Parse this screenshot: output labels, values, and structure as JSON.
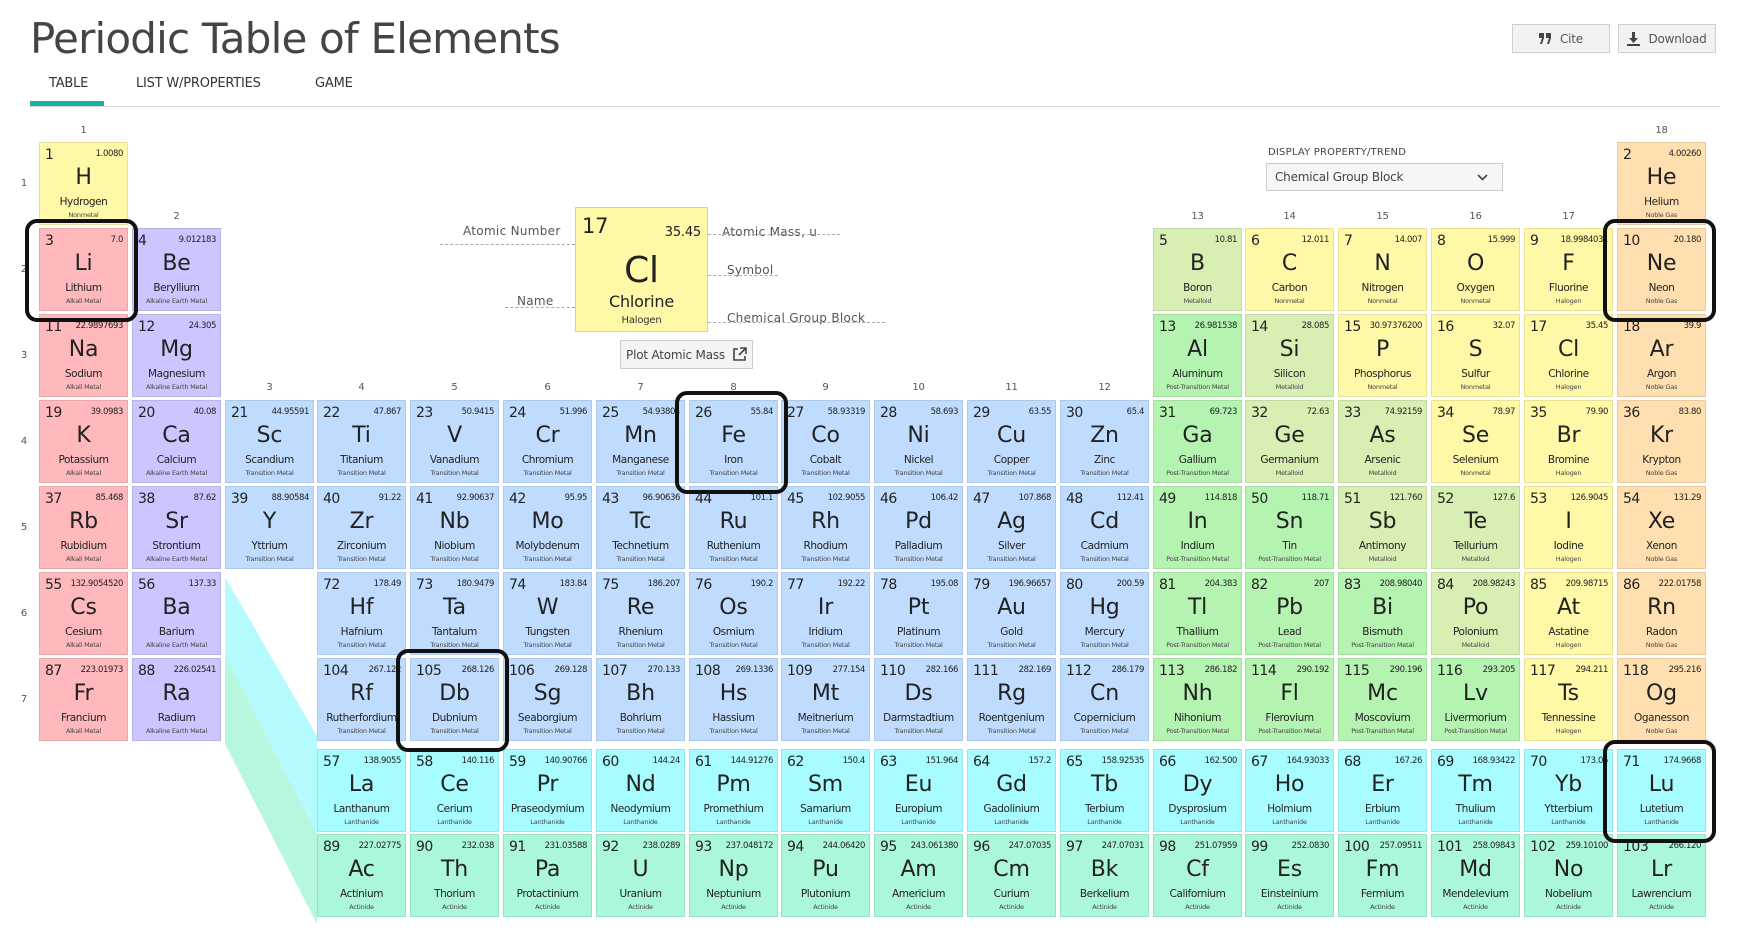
{
  "page": {
    "title": "Periodic Table of Elements",
    "cite_label": "Cite",
    "download_label": "Download",
    "tabs": [
      {
        "label": "TABLE",
        "active": true
      },
      {
        "label": "LIST W/PROPERTIES",
        "active": false
      },
      {
        "label": "GAME",
        "active": false
      }
    ]
  },
  "display_property": {
    "label": "DISPLAY PROPERTY/TREND",
    "selected": "Chemical Group Block"
  },
  "legend": {
    "number": "17",
    "mass": "35.45",
    "symbol": "Cl",
    "name": "Chlorine",
    "group": "Halogen",
    "labels": {
      "atomic_number": "Atomic Number",
      "atomic_mass": "Atomic Mass, u",
      "symbol": "Symbol",
      "name": "Name",
      "group_block": "Chemical Group Block"
    },
    "plot_button": "Plot Atomic Mass"
  },
  "group_numbers": [
    "1",
    "2",
    "3",
    "4",
    "5",
    "6",
    "7",
    "8",
    "9",
    "10",
    "11",
    "12",
    "13",
    "14",
    "15",
    "16",
    "17",
    "18"
  ],
  "period_numbers": [
    "1",
    "2",
    "3",
    "4",
    "5",
    "6",
    "7"
  ],
  "colors": {
    "Nonmetal": "#fff8a6",
    "Noble Gas": "#ffdfb0",
    "Alkali Metal": "#ffb8bc",
    "Alkaline Earth Metal": "#cbc6ff",
    "Transition Metal": "#bfdcff",
    "Post-Transition Metal": "#b4f3b0",
    "Metalloid": "#d8efb4",
    "Halogen": "#fff8a6",
    "Lanthanide": "#a6fcff",
    "Actinide": "#aaf7da",
    "highlight_border": "#111111",
    "tab_accent": "#18b2a4"
  },
  "highlighted_elements": [
    "Li",
    "Fe",
    "Db",
    "Ne",
    "Lu"
  ],
  "elements": [
    {
      "n": "1",
      "s": "H",
      "name": "Hydrogen",
      "m": "1.0080",
      "g": "Nonmetal",
      "col": 1,
      "row": 1
    },
    {
      "n": "2",
      "s": "He",
      "name": "Helium",
      "m": "4.00260",
      "g": "Noble Gas",
      "col": 18,
      "row": 1
    },
    {
      "n": "3",
      "s": "Li",
      "name": "Lithium",
      "m": "7.0",
      "g": "Alkali Metal",
      "col": 1,
      "row": 2
    },
    {
      "n": "4",
      "s": "Be",
      "name": "Beryllium",
      "m": "9.012183",
      "g": "Alkaline Earth Metal",
      "col": 2,
      "row": 2
    },
    {
      "n": "5",
      "s": "B",
      "name": "Boron",
      "m": "10.81",
      "g": "Metalloid",
      "col": 13,
      "row": 2
    },
    {
      "n": "6",
      "s": "C",
      "name": "Carbon",
      "m": "12.011",
      "g": "Nonmetal",
      "col": 14,
      "row": 2
    },
    {
      "n": "7",
      "s": "N",
      "name": "Nitrogen",
      "m": "14.007",
      "g": "Nonmetal",
      "col": 15,
      "row": 2
    },
    {
      "n": "8",
      "s": "O",
      "name": "Oxygen",
      "m": "15.999",
      "g": "Nonmetal",
      "col": 16,
      "row": 2
    },
    {
      "n": "9",
      "s": "F",
      "name": "Fluorine",
      "m": "18.9984031",
      "g": "Halogen",
      "col": 17,
      "row": 2
    },
    {
      "n": "10",
      "s": "Ne",
      "name": "Neon",
      "m": "20.180",
      "g": "Noble Gas",
      "col": 18,
      "row": 2
    },
    {
      "n": "11",
      "s": "Na",
      "name": "Sodium",
      "m": "22.9897693",
      "g": "Alkali Metal",
      "col": 1,
      "row": 3
    },
    {
      "n": "12",
      "s": "Mg",
      "name": "Magnesium",
      "m": "24.305",
      "g": "Alkaline Earth Metal",
      "col": 2,
      "row": 3
    },
    {
      "n": "13",
      "s": "Al",
      "name": "Aluminum",
      "m": "26.981538",
      "g": "Post-Transition Metal",
      "col": 13,
      "row": 3
    },
    {
      "n": "14",
      "s": "Si",
      "name": "Silicon",
      "m": "28.085",
      "g": "Metalloid",
      "col": 14,
      "row": 3
    },
    {
      "n": "15",
      "s": "P",
      "name": "Phosphorus",
      "m": "30.97376200",
      "g": "Nonmetal",
      "col": 15,
      "row": 3
    },
    {
      "n": "16",
      "s": "S",
      "name": "Sulfur",
      "m": "32.07",
      "g": "Nonmetal",
      "col": 16,
      "row": 3
    },
    {
      "n": "17",
      "s": "Cl",
      "name": "Chlorine",
      "m": "35.45",
      "g": "Halogen",
      "col": 17,
      "row": 3
    },
    {
      "n": "18",
      "s": "Ar",
      "name": "Argon",
      "m": "39.9",
      "g": "Noble Gas",
      "col": 18,
      "row": 3
    },
    {
      "n": "19",
      "s": "K",
      "name": "Potassium",
      "m": "39.0983",
      "g": "Alkali Metal",
      "col": 1,
      "row": 4
    },
    {
      "n": "20",
      "s": "Ca",
      "name": "Calcium",
      "m": "40.08",
      "g": "Alkaline Earth Metal",
      "col": 2,
      "row": 4
    },
    {
      "n": "21",
      "s": "Sc",
      "name": "Scandium",
      "m": "44.95591",
      "g": "Transition Metal",
      "col": 3,
      "row": 4
    },
    {
      "n": "22",
      "s": "Ti",
      "name": "Titanium",
      "m": "47.867",
      "g": "Transition Metal",
      "col": 4,
      "row": 4
    },
    {
      "n": "23",
      "s": "V",
      "name": "Vanadium",
      "m": "50.9415",
      "g": "Transition Metal",
      "col": 5,
      "row": 4
    },
    {
      "n": "24",
      "s": "Cr",
      "name": "Chromium",
      "m": "51.996",
      "g": "Transition Metal",
      "col": 6,
      "row": 4
    },
    {
      "n": "25",
      "s": "Mn",
      "name": "Manganese",
      "m": "54.93804",
      "g": "Transition Metal",
      "col": 7,
      "row": 4
    },
    {
      "n": "26",
      "s": "Fe",
      "name": "Iron",
      "m": "55.84",
      "g": "Transition Metal",
      "col": 8,
      "row": 4
    },
    {
      "n": "27",
      "s": "Co",
      "name": "Cobalt",
      "m": "58.93319",
      "g": "Transition Metal",
      "col": 9,
      "row": 4
    },
    {
      "n": "28",
      "s": "Ni",
      "name": "Nickel",
      "m": "58.693",
      "g": "Transition Metal",
      "col": 10,
      "row": 4
    },
    {
      "n": "29",
      "s": "Cu",
      "name": "Copper",
      "m": "63.55",
      "g": "Transition Metal",
      "col": 11,
      "row": 4
    },
    {
      "n": "30",
      "s": "Zn",
      "name": "Zinc",
      "m": "65.4",
      "g": "Transition Metal",
      "col": 12,
      "row": 4
    },
    {
      "n": "31",
      "s": "Ga",
      "name": "Gallium",
      "m": "69.723",
      "g": "Post-Transition Metal",
      "col": 13,
      "row": 4
    },
    {
      "n": "32",
      "s": "Ge",
      "name": "Germanium",
      "m": "72.63",
      "g": "Metalloid",
      "col": 14,
      "row": 4
    },
    {
      "n": "33",
      "s": "As",
      "name": "Arsenic",
      "m": "74.92159",
      "g": "Metalloid",
      "col": 15,
      "row": 4
    },
    {
      "n": "34",
      "s": "Se",
      "name": "Selenium",
      "m": "78.97",
      "g": "Nonmetal",
      "col": 16,
      "row": 4
    },
    {
      "n": "35",
      "s": "Br",
      "name": "Bromine",
      "m": "79.90",
      "g": "Halogen",
      "col": 17,
      "row": 4
    },
    {
      "n": "36",
      "s": "Kr",
      "name": "Krypton",
      "m": "83.80",
      "g": "Noble Gas",
      "col": 18,
      "row": 4
    },
    {
      "n": "37",
      "s": "Rb",
      "name": "Rubidium",
      "m": "85.468",
      "g": "Alkali Metal",
      "col": 1,
      "row": 5
    },
    {
      "n": "38",
      "s": "Sr",
      "name": "Strontium",
      "m": "87.62",
      "g": "Alkaline Earth Metal",
      "col": 2,
      "row": 5
    },
    {
      "n": "39",
      "s": "Y",
      "name": "Yttrium",
      "m": "88.90584",
      "g": "Transition Metal",
      "col": 3,
      "row": 5
    },
    {
      "n": "40",
      "s": "Zr",
      "name": "Zirconium",
      "m": "91.22",
      "g": "Transition Metal",
      "col": 4,
      "row": 5
    },
    {
      "n": "41",
      "s": "Nb",
      "name": "Niobium",
      "m": "92.90637",
      "g": "Transition Metal",
      "col": 5,
      "row": 5
    },
    {
      "n": "42",
      "s": "Mo",
      "name": "Molybdenum",
      "m": "95.95",
      "g": "Transition Metal",
      "col": 6,
      "row": 5
    },
    {
      "n": "43",
      "s": "Tc",
      "name": "Technetium",
      "m": "96.90636",
      "g": "Transition Metal",
      "col": 7,
      "row": 5
    },
    {
      "n": "44",
      "s": "Ru",
      "name": "Ruthenium",
      "m": "101.1",
      "g": "Transition Metal",
      "col": 8,
      "row": 5
    },
    {
      "n": "45",
      "s": "Rh",
      "name": "Rhodium",
      "m": "102.9055",
      "g": "Transition Metal",
      "col": 9,
      "row": 5
    },
    {
      "n": "46",
      "s": "Pd",
      "name": "Palladium",
      "m": "106.42",
      "g": "Transition Metal",
      "col": 10,
      "row": 5
    },
    {
      "n": "47",
      "s": "Ag",
      "name": "Silver",
      "m": "107.868",
      "g": "Transition Metal",
      "col": 11,
      "row": 5
    },
    {
      "n": "48",
      "s": "Cd",
      "name": "Cadmium",
      "m": "112.41",
      "g": "Transition Metal",
      "col": 12,
      "row": 5
    },
    {
      "n": "49",
      "s": "In",
      "name": "Indium",
      "m": "114.818",
      "g": "Post-Transition Metal",
      "col": 13,
      "row": 5
    },
    {
      "n": "50",
      "s": "Sn",
      "name": "Tin",
      "m": "118.71",
      "g": "Post-Transition Metal",
      "col": 14,
      "row": 5
    },
    {
      "n": "51",
      "s": "Sb",
      "name": "Antimony",
      "m": "121.760",
      "g": "Metalloid",
      "col": 15,
      "row": 5
    },
    {
      "n": "52",
      "s": "Te",
      "name": "Tellurium",
      "m": "127.6",
      "g": "Metalloid",
      "col": 16,
      "row": 5
    },
    {
      "n": "53",
      "s": "I",
      "name": "Iodine",
      "m": "126.9045",
      "g": "Halogen",
      "col": 17,
      "row": 5
    },
    {
      "n": "54",
      "s": "Xe",
      "name": "Xenon",
      "m": "131.29",
      "g": "Noble Gas",
      "col": 18,
      "row": 5
    },
    {
      "n": "55",
      "s": "Cs",
      "name": "Cesium",
      "m": "132.9054520",
      "g": "Alkali Metal",
      "col": 1,
      "row": 6
    },
    {
      "n": "56",
      "s": "Ba",
      "name": "Barium",
      "m": "137.33",
      "g": "Alkaline Earth Metal",
      "col": 2,
      "row": 6
    },
    {
      "n": "72",
      "s": "Hf",
      "name": "Hafnium",
      "m": "178.49",
      "g": "Transition Metal",
      "col": 4,
      "row": 6
    },
    {
      "n": "73",
      "s": "Ta",
      "name": "Tantalum",
      "m": "180.9479",
      "g": "Transition Metal",
      "col": 5,
      "row": 6
    },
    {
      "n": "74",
      "s": "W",
      "name": "Tungsten",
      "m": "183.84",
      "g": "Transition Metal",
      "col": 6,
      "row": 6
    },
    {
      "n": "75",
      "s": "Re",
      "name": "Rhenium",
      "m": "186.207",
      "g": "Transition Metal",
      "col": 7,
      "row": 6
    },
    {
      "n": "76",
      "s": "Os",
      "name": "Osmium",
      "m": "190.2",
      "g": "Transition Metal",
      "col": 8,
      "row": 6
    },
    {
      "n": "77",
      "s": "Ir",
      "name": "Iridium",
      "m": "192.22",
      "g": "Transition Metal",
      "col": 9,
      "row": 6
    },
    {
      "n": "78",
      "s": "Pt",
      "name": "Platinum",
      "m": "195.08",
      "g": "Transition Metal",
      "col": 10,
      "row": 6
    },
    {
      "n": "79",
      "s": "Au",
      "name": "Gold",
      "m": "196.96657",
      "g": "Transition Metal",
      "col": 11,
      "row": 6
    },
    {
      "n": "80",
      "s": "Hg",
      "name": "Mercury",
      "m": "200.59",
      "g": "Transition Metal",
      "col": 12,
      "row": 6
    },
    {
      "n": "81",
      "s": "Tl",
      "name": "Thallium",
      "m": "204.383",
      "g": "Post-Transition Metal",
      "col": 13,
      "row": 6
    },
    {
      "n": "82",
      "s": "Pb",
      "name": "Lead",
      "m": "207",
      "g": "Post-Transition Metal",
      "col": 14,
      "row": 6
    },
    {
      "n": "83",
      "s": "Bi",
      "name": "Bismuth",
      "m": "208.98040",
      "g": "Post-Transition Metal",
      "col": 15,
      "row": 6
    },
    {
      "n": "84",
      "s": "Po",
      "name": "Polonium",
      "m": "208.98243",
      "g": "Metalloid",
      "col": 16,
      "row": 6
    },
    {
      "n": "85",
      "s": "At",
      "name": "Astatine",
      "m": "209.98715",
      "g": "Halogen",
      "col": 17,
      "row": 6
    },
    {
      "n": "86",
      "s": "Rn",
      "name": "Radon",
      "m": "222.01758",
      "g": "Noble Gas",
      "col": 18,
      "row": 6
    },
    {
      "n": "87",
      "s": "Fr",
      "name": "Francium",
      "m": "223.01973",
      "g": "Alkali Metal",
      "col": 1,
      "row": 7
    },
    {
      "n": "88",
      "s": "Ra",
      "name": "Radium",
      "m": "226.02541",
      "g": "Alkaline Earth Metal",
      "col": 2,
      "row": 7
    },
    {
      "n": "104",
      "s": "Rf",
      "name": "Rutherfordium",
      "m": "267.122",
      "g": "Transition Metal",
      "col": 4,
      "row": 7
    },
    {
      "n": "105",
      "s": "Db",
      "name": "Dubnium",
      "m": "268.126",
      "g": "Transition Metal",
      "col": 5,
      "row": 7
    },
    {
      "n": "106",
      "s": "Sg",
      "name": "Seaborgium",
      "m": "269.128",
      "g": "Transition Metal",
      "col": 6,
      "row": 7
    },
    {
      "n": "107",
      "s": "Bh",
      "name": "Bohrium",
      "m": "270.133",
      "g": "Transition Metal",
      "col": 7,
      "row": 7
    },
    {
      "n": "108",
      "s": "Hs",
      "name": "Hassium",
      "m": "269.1336",
      "g": "Transition Metal",
      "col": 8,
      "row": 7
    },
    {
      "n": "109",
      "s": "Mt",
      "name": "Meitnerium",
      "m": "277.154",
      "g": "Transition Metal",
      "col": 9,
      "row": 7
    },
    {
      "n": "110",
      "s": "Ds",
      "name": "Darmstadtium",
      "m": "282.166",
      "g": "Transition Metal",
      "col": 10,
      "row": 7
    },
    {
      "n": "111",
      "s": "Rg",
      "name": "Roentgenium",
      "m": "282.169",
      "g": "Transition Metal",
      "col": 11,
      "row": 7
    },
    {
      "n": "112",
      "s": "Cn",
      "name": "Copernicium",
      "m": "286.179",
      "g": "Transition Metal",
      "col": 12,
      "row": 7
    },
    {
      "n": "113",
      "s": "Nh",
      "name": "Nihonium",
      "m": "286.182",
      "g": "Post-Transition Metal",
      "col": 13,
      "row": 7
    },
    {
      "n": "114",
      "s": "Fl",
      "name": "Flerovium",
      "m": "290.192",
      "g": "Post-Transition Metal",
      "col": 14,
      "row": 7
    },
    {
      "n": "115",
      "s": "Mc",
      "name": "Moscovium",
      "m": "290.196",
      "g": "Post-Transition Metal",
      "col": 15,
      "row": 7
    },
    {
      "n": "116",
      "s": "Lv",
      "name": "Livermorium",
      "m": "293.205",
      "g": "Post-Transition Metal",
      "col": 16,
      "row": 7
    },
    {
      "n": "117",
      "s": "Ts",
      "name": "Tennessine",
      "m": "294.211",
      "g": "Halogen",
      "col": 17,
      "row": 7
    },
    {
      "n": "118",
      "s": "Og",
      "name": "Oganesson",
      "m": "295.216",
      "g": "Noble Gas",
      "col": 18,
      "row": 7
    },
    {
      "n": "57",
      "s": "La",
      "name": "Lanthanum",
      "m": "138.9055",
      "g": "Lanthanide",
      "col": 4,
      "row": 8
    },
    {
      "n": "58",
      "s": "Ce",
      "name": "Cerium",
      "m": "140.116",
      "g": "Lanthanide",
      "col": 5,
      "row": 8
    },
    {
      "n": "59",
      "s": "Pr",
      "name": "Praseodymium",
      "m": "140.90766",
      "g": "Lanthanide",
      "col": 6,
      "row": 8
    },
    {
      "n": "60",
      "s": "Nd",
      "name": "Neodymium",
      "m": "144.24",
      "g": "Lanthanide",
      "col": 7,
      "row": 8
    },
    {
      "n": "61",
      "s": "Pm",
      "name": "Promethium",
      "m": "144.91276",
      "g": "Lanthanide",
      "col": 8,
      "row": 8
    },
    {
      "n": "62",
      "s": "Sm",
      "name": "Samarium",
      "m": "150.4",
      "g": "Lanthanide",
      "col": 9,
      "row": 8
    },
    {
      "n": "63",
      "s": "Eu",
      "name": "Europium",
      "m": "151.964",
      "g": "Lanthanide",
      "col": 10,
      "row": 8
    },
    {
      "n": "64",
      "s": "Gd",
      "name": "Gadolinium",
      "m": "157.2",
      "g": "Lanthanide",
      "col": 11,
      "row": 8
    },
    {
      "n": "65",
      "s": "Tb",
      "name": "Terbium",
      "m": "158.92535",
      "g": "Lanthanide",
      "col": 12,
      "row": 8
    },
    {
      "n": "66",
      "s": "Dy",
      "name": "Dysprosium",
      "m": "162.500",
      "g": "Lanthanide",
      "col": 13,
      "row": 8
    },
    {
      "n": "67",
      "s": "Ho",
      "name": "Holmium",
      "m": "164.93033",
      "g": "Lanthanide",
      "col": 14,
      "row": 8
    },
    {
      "n": "68",
      "s": "Er",
      "name": "Erbium",
      "m": "167.26",
      "g": "Lanthanide",
      "col": 15,
      "row": 8
    },
    {
      "n": "69",
      "s": "Tm",
      "name": "Thulium",
      "m": "168.93422",
      "g": "Lanthanide",
      "col": 16,
      "row": 8
    },
    {
      "n": "70",
      "s": "Yb",
      "name": "Ytterbium",
      "m": "173.05",
      "g": "Lanthanide",
      "col": 17,
      "row": 8
    },
    {
      "n": "71",
      "s": "Lu",
      "name": "Lutetium",
      "m": "174.9668",
      "g": "Lanthanide",
      "col": 18,
      "row": 8
    },
    {
      "n": "89",
      "s": "Ac",
      "name": "Actinium",
      "m": "227.02775",
      "g": "Actinide",
      "col": 4,
      "row": 9
    },
    {
      "n": "90",
      "s": "Th",
      "name": "Thorium",
      "m": "232.038",
      "g": "Actinide",
      "col": 5,
      "row": 9
    },
    {
      "n": "91",
      "s": "Pa",
      "name": "Protactinium",
      "m": "231.03588",
      "g": "Actinide",
      "col": 6,
      "row": 9
    },
    {
      "n": "92",
      "s": "U",
      "name": "Uranium",
      "m": "238.0289",
      "g": "Actinide",
      "col": 7,
      "row": 9
    },
    {
      "n": "93",
      "s": "Np",
      "name": "Neptunium",
      "m": "237.048172",
      "g": "Actinide",
      "col": 8,
      "row": 9
    },
    {
      "n": "94",
      "s": "Pu",
      "name": "Plutonium",
      "m": "244.06420",
      "g": "Actinide",
      "col": 9,
      "row": 9
    },
    {
      "n": "95",
      "s": "Am",
      "name": "Americium",
      "m": "243.061380",
      "g": "Actinide",
      "col": 10,
      "row": 9
    },
    {
      "n": "96",
      "s": "Cm",
      "name": "Curium",
      "m": "247.07035",
      "g": "Actinide",
      "col": 11,
      "row": 9
    },
    {
      "n": "97",
      "s": "Bk",
      "name": "Berkelium",
      "m": "247.07031",
      "g": "Actinide",
      "col": 12,
      "row": 9
    },
    {
      "n": "98",
      "s": "Cf",
      "name": "Californium",
      "m": "251.07959",
      "g": "Actinide",
      "col": 13,
      "row": 9
    },
    {
      "n": "99",
      "s": "Es",
      "name": "Einsteinium",
      "m": "252.0830",
      "g": "Actinide",
      "col": 14,
      "row": 9
    },
    {
      "n": "100",
      "s": "Fm",
      "name": "Fermium",
      "m": "257.09511",
      "g": "Actinide",
      "col": 15,
      "row": 9
    },
    {
      "n": "101",
      "s": "Md",
      "name": "Mendelevium",
      "m": "258.09843",
      "g": "Actinide",
      "col": 16,
      "row": 9
    },
    {
      "n": "102",
      "s": "No",
      "name": "Nobelium",
      "m": "259.10100",
      "g": "Actinide",
      "col": 17,
      "row": 9
    },
    {
      "n": "103",
      "s": "Lr",
      "name": "Lawrencium",
      "m": "266.120",
      "g": "Actinide",
      "col": 18,
      "row": 9
    }
  ]
}
